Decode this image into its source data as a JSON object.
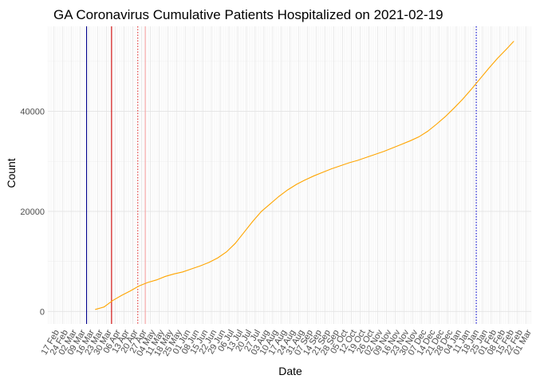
{
  "chart_data": {
    "type": "line",
    "title": "GA Coronavirus Cumulative Patients Hospitalized on 2021-02-19",
    "xlabel": "Date",
    "ylabel": "Count",
    "x_range": [
      "2020-02-12",
      "2021-03-05"
    ],
    "ylim": [
      -2500,
      57000
    ],
    "y_ticks": [
      0,
      20000,
      40000
    ],
    "y_tick_labels": [
      "0",
      "20000",
      "40000"
    ],
    "x_tick_labels": [
      "17 Feb",
      "24 Feb",
      "02 Mar",
      "09 Mar",
      "16 Mar",
      "23 Mar",
      "30 Mar",
      "06 Apr",
      "13 Apr",
      "20 Apr",
      "27 Apr",
      "04 May",
      "11 May",
      "18 May",
      "25 May",
      "01 Jun",
      "08 Jun",
      "15 Jun",
      "22 Jun",
      "29 Jun",
      "06 Jul",
      "13 Jul",
      "20 Jul",
      "27 Jul",
      "03 Aug",
      "10 Aug",
      "17 Aug",
      "24 Aug",
      "31 Aug",
      "07 Sep",
      "14 Sep",
      "21 Sep",
      "28 Sep",
      "05 Oct",
      "12 Oct",
      "19 Oct",
      "26 Oct",
      "02 Nov",
      "09 Nov",
      "16 Nov",
      "23 Nov",
      "30 Nov",
      "07 Dec",
      "14 Dec",
      "21 Dec",
      "28 Dec",
      "04 Jan",
      "11 Jan",
      "18 Jan",
      "25 Jan",
      "01 Feb",
      "08 Feb",
      "15 Feb",
      "22 Feb",
      "01 Mar"
    ],
    "x_tick_dates": [
      "2020-02-17",
      "2020-02-24",
      "2020-03-02",
      "2020-03-09",
      "2020-03-16",
      "2020-03-23",
      "2020-03-30",
      "2020-04-06",
      "2020-04-13",
      "2020-04-20",
      "2020-04-27",
      "2020-05-04",
      "2020-05-11",
      "2020-05-18",
      "2020-05-25",
      "2020-06-01",
      "2020-06-08",
      "2020-06-15",
      "2020-06-22",
      "2020-06-29",
      "2020-07-06",
      "2020-07-13",
      "2020-07-20",
      "2020-07-27",
      "2020-08-03",
      "2020-08-10",
      "2020-08-17",
      "2020-08-24",
      "2020-08-31",
      "2020-09-07",
      "2020-09-14",
      "2020-09-21",
      "2020-09-28",
      "2020-10-05",
      "2020-10-12",
      "2020-10-19",
      "2020-10-26",
      "2020-11-02",
      "2020-11-09",
      "2020-11-16",
      "2020-11-23",
      "2020-11-30",
      "2020-12-07",
      "2020-12-14",
      "2020-12-21",
      "2020-12-28",
      "2021-01-04",
      "2021-01-11",
      "2021-01-18",
      "2021-01-25",
      "2021-02-01",
      "2021-02-08",
      "2021-02-15",
      "2021-02-22",
      "2021-03-01"
    ],
    "grid": true,
    "series": [
      {
        "color": "#FFA500",
        "points": [
          [
            "2020-03-21",
            400
          ],
          [
            "2020-03-28",
            900
          ],
          [
            "2020-04-04",
            2200
          ],
          [
            "2020-04-11",
            3200
          ],
          [
            "2020-04-18",
            4100
          ],
          [
            "2020-04-25",
            5100
          ],
          [
            "2020-05-02",
            5800
          ],
          [
            "2020-05-09",
            6300
          ],
          [
            "2020-05-16",
            7000
          ],
          [
            "2020-05-23",
            7500
          ],
          [
            "2020-05-30",
            7900
          ],
          [
            "2020-06-06",
            8500
          ],
          [
            "2020-06-13",
            9100
          ],
          [
            "2020-06-20",
            9800
          ],
          [
            "2020-06-27",
            10700
          ],
          [
            "2020-07-04",
            11900
          ],
          [
            "2020-07-11",
            13600
          ],
          [
            "2020-07-18",
            15800
          ],
          [
            "2020-07-25",
            18000
          ],
          [
            "2020-08-01",
            20000
          ],
          [
            "2020-08-08",
            21500
          ],
          [
            "2020-08-15",
            23000
          ],
          [
            "2020-08-22",
            24300
          ],
          [
            "2020-08-29",
            25400
          ],
          [
            "2020-09-05",
            26300
          ],
          [
            "2020-09-12",
            27100
          ],
          [
            "2020-09-19",
            27800
          ],
          [
            "2020-09-26",
            28500
          ],
          [
            "2020-10-03",
            29100
          ],
          [
            "2020-10-10",
            29700
          ],
          [
            "2020-10-17",
            30200
          ],
          [
            "2020-10-24",
            30800
          ],
          [
            "2020-10-31",
            31400
          ],
          [
            "2020-11-07",
            32000
          ],
          [
            "2020-11-14",
            32700
          ],
          [
            "2020-11-21",
            33400
          ],
          [
            "2020-11-28",
            34100
          ],
          [
            "2020-12-05",
            34900
          ],
          [
            "2020-12-12",
            36000
          ],
          [
            "2020-12-19",
            37400
          ],
          [
            "2020-12-26",
            38900
          ],
          [
            "2021-01-02",
            40600
          ],
          [
            "2021-01-09",
            42400
          ],
          [
            "2021-01-16",
            44400
          ],
          [
            "2021-01-23",
            46500
          ],
          [
            "2021-01-30",
            48600
          ],
          [
            "2021-02-06",
            50600
          ],
          [
            "2021-02-13",
            52400
          ],
          [
            "2021-02-19",
            54000
          ]
        ]
      }
    ],
    "vertical_lines": [
      {
        "date": "2020-03-14",
        "color": "#00008B",
        "style": "solid"
      },
      {
        "date": "2020-04-03",
        "color": "#CC0000",
        "style": "solid"
      },
      {
        "date": "2020-04-24",
        "color": "#E03030",
        "style": "dotted"
      },
      {
        "date": "2020-04-30",
        "color": "#F4A0A0",
        "style": "solid"
      },
      {
        "date": "2021-01-20",
        "color": "#0000CC",
        "style": "dotted"
      }
    ]
  }
}
